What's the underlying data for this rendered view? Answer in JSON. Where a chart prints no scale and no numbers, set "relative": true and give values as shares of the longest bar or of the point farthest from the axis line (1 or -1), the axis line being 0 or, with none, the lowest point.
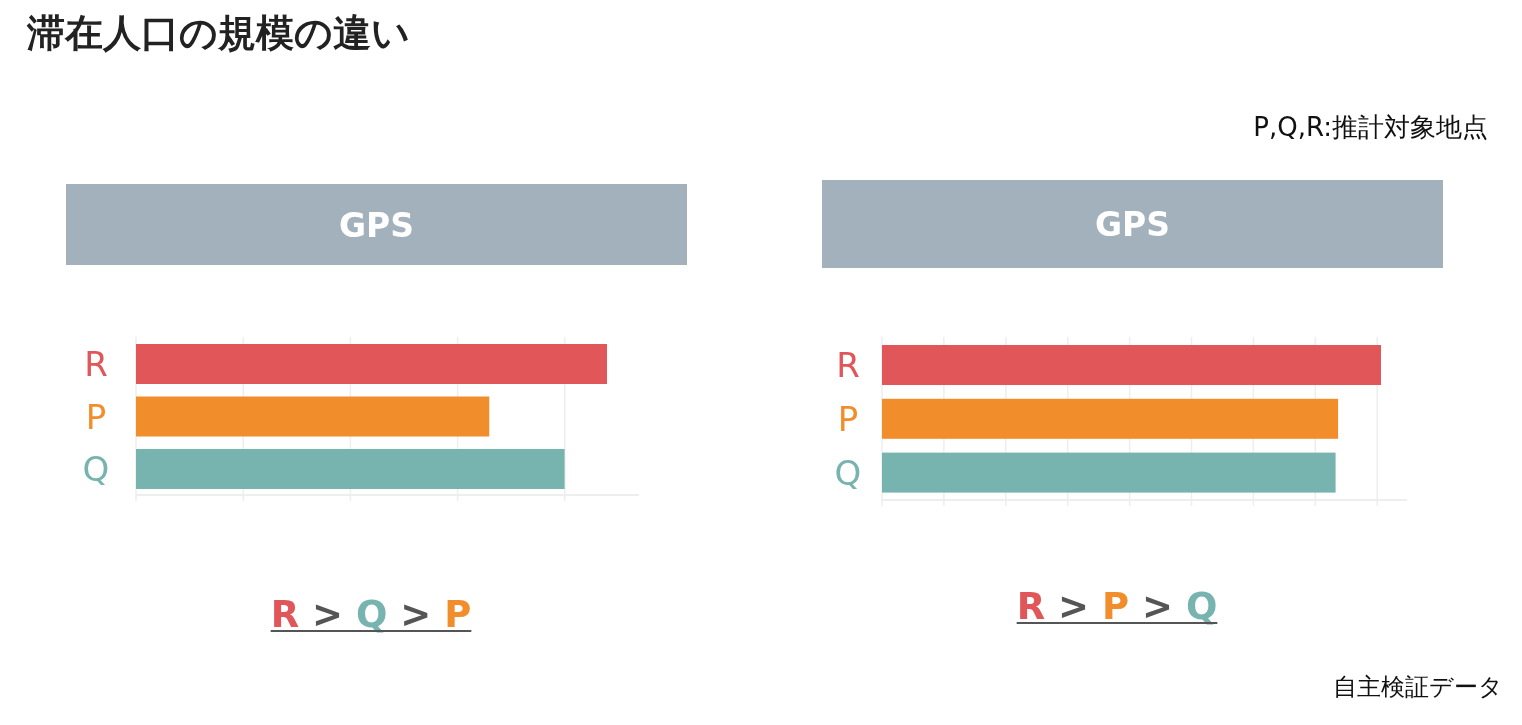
{
  "chart_data": [
    {
      "type": "other",
      "title": "滞在人口の規模の違い",
      "annotations": [
        "P,Q,R:推計対象地点",
        "自主検証データ"
      ]
    },
    {
      "type": "bar",
      "title": "GPS",
      "orientation": "horizontal",
      "relative": true,
      "categories": [
        "R",
        "P",
        "Q"
      ],
      "values": [
        1,
        0.75,
        0.91
      ],
      "colors": [
        "#e05659",
        "#f28d2b",
        "#78b4af"
      ],
      "grid": "x",
      "annotations": [
        "R > Q > P"
      ]
    },
    {
      "type": "bar",
      "title": "GPS",
      "orientation": "horizontal",
      "relative": true,
      "categories": [
        "R",
        "P",
        "Q"
      ],
      "values": [
        1,
        0.914,
        0.909
      ],
      "colors": [
        "#e05659",
        "#f28d2b",
        "#78b4af"
      ],
      "grid": "x",
      "annotations": [
        "R > P > Q"
      ]
    }
  ]
}
